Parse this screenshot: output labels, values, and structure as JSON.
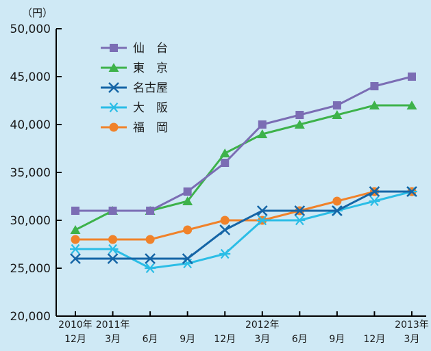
{
  "chart_data": {
    "type": "line",
    "unit_label": "（円）",
    "ylim": [
      20000,
      50000
    ],
    "y_ticks": [
      20000,
      25000,
      30000,
      35000,
      40000,
      45000,
      50000
    ],
    "y_tick_labels": [
      "20,000",
      "25,000",
      "30,000",
      "35,000",
      "40,000",
      "45,000",
      "50,000"
    ],
    "categories": [
      "2010年12月",
      "2011年3月",
      "6月",
      "9月",
      "12月",
      "2012年3月",
      "6月",
      "9月",
      "12月",
      "2013年3月"
    ],
    "x_tick_labels": [
      {
        "year": "2010年",
        "month": "12月"
      },
      {
        "year": "2011年",
        "month": "3月"
      },
      {
        "year": "",
        "month": "6月"
      },
      {
        "year": "",
        "month": "9月"
      },
      {
        "year": "",
        "month": "12月"
      },
      {
        "year": "2012年",
        "month": "3月"
      },
      {
        "year": "",
        "month": "6月"
      },
      {
        "year": "",
        "month": "9月"
      },
      {
        "year": "",
        "month": "12月"
      },
      {
        "year": "2013年",
        "month": "3月"
      }
    ],
    "grid": false,
    "legend_position": "top-left",
    "series": [
      {
        "name": "仙　台",
        "color": "#7b6db4",
        "marker": "square",
        "values": [
          31000,
          31000,
          31000,
          33000,
          36000,
          40000,
          41000,
          42000,
          44000,
          45000
        ]
      },
      {
        "name": "東　京",
        "color": "#3db24a",
        "marker": "triangle",
        "values": [
          29000,
          31000,
          31000,
          32000,
          37000,
          39000,
          40000,
          41000,
          42000,
          42000
        ]
      },
      {
        "name": "名古屋",
        "color": "#1565a6",
        "marker": "x",
        "values": [
          26000,
          26000,
          26000,
          26000,
          29000,
          31000,
          31000,
          31000,
          33000,
          33000
        ]
      },
      {
        "name": "大　阪",
        "color": "#2bbde6",
        "marker": "asterisk",
        "values": [
          27000,
          27000,
          25000,
          25500,
          26500,
          30000,
          30000,
          31000,
          32000,
          33000
        ]
      },
      {
        "name": "福　岡",
        "color": "#f0822a",
        "marker": "circle",
        "values": [
          28000,
          28000,
          28000,
          29000,
          30000,
          30000,
          31000,
          32000,
          33000,
          33000
        ]
      }
    ]
  }
}
